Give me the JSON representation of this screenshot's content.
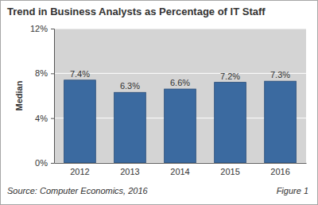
{
  "chart_data": {
    "type": "bar",
    "title": "Trend in Business Analysts as Percentage of IT Staff",
    "ylabel": "Median",
    "categories": [
      "2012",
      "2013",
      "2014",
      "2015",
      "2016"
    ],
    "values": [
      7.4,
      6.3,
      6.6,
      7.2,
      7.3
    ],
    "value_labels": [
      "7.4%",
      "6.3%",
      "6.6%",
      "7.2%",
      "7.3%"
    ],
    "color": "#3b6aa0",
    "ylim": [
      0,
      12
    ],
    "yticks": [
      {
        "value": 0,
        "label": "0%"
      },
      {
        "value": 4,
        "label": "4%"
      },
      {
        "value": 8,
        "label": "8%"
      },
      {
        "value": 12,
        "label": "12%"
      }
    ],
    "grid": true,
    "data_labels": true,
    "annotations": [
      "Source: Computer Economics, 2016",
      "Figure 1"
    ]
  }
}
